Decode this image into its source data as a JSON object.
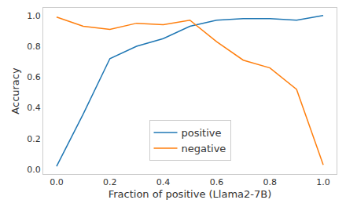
{
  "chart_data": {
    "type": "line",
    "x_label": "Fraction of positive (Llama2-7B)",
    "y_label": "Accuracy",
    "x": [
      0.0,
      0.1,
      0.2,
      0.3,
      0.4,
      0.5,
      0.6,
      0.7,
      0.8,
      0.9,
      1.0
    ],
    "series": [
      {
        "name": "positive",
        "color": "#1f77b4",
        "values": [
          0.02,
          0.36,
          0.72,
          0.8,
          0.85,
          0.93,
          0.97,
          0.98,
          0.98,
          0.97,
          1.0
        ]
      },
      {
        "name": "negative",
        "color": "#ff7f0e",
        "values": [
          0.99,
          0.93,
          0.91,
          0.95,
          0.94,
          0.97,
          0.83,
          0.71,
          0.66,
          0.52,
          0.03
        ]
      }
    ],
    "xlim": [
      -0.05,
      1.05
    ],
    "xticks": [
      {
        "value": 0,
        "label": "0.0"
      },
      0.2,
      0.4,
      0.6,
      0.8,
      {
        "value": 1,
        "label": "1.0"
      }
    ],
    "ylim": [
      -0.03,
      1.05
    ],
    "yticks": [
      {
        "value": 0,
        "label": "0.0"
      },
      0.2,
      0.4,
      0.6,
      0.8,
      {
        "value": 1,
        "label": "1.0"
      }
    ],
    "grid": false,
    "legend": "lower center"
  }
}
